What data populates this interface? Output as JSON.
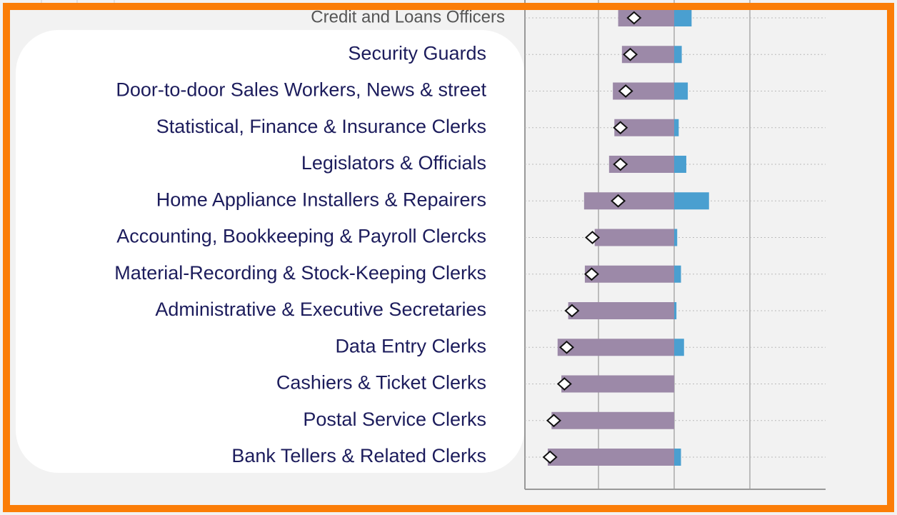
{
  "chart_data": {
    "type": "diverging-bar",
    "categories": [
      "Credit and Loans Officers",
      "Security Guards",
      "Door-to-door Sales Workers, News & street",
      "Statistical, Finance & Insurance Clerks",
      "Legislators & Officials",
      "Home Appliance Installers & Repairers",
      "Accounting, Bookkeeping & Payroll Clercks",
      "Material-Recording & Stock-Keeping Clerks",
      "Administrative & Executive Secretaries",
      "Data Entry Clerks",
      "Cashiers & Ticket Clerks",
      "Postal Service Clerks",
      "Bank Tellers & Related Clerks"
    ],
    "series": [
      {
        "color": "#9c89a8",
        "values": [
          -0.74,
          -0.69,
          -0.81,
          -0.79,
          -0.86,
          -1.19,
          -1.05,
          -1.18,
          -1.4,
          -1.54,
          -1.49,
          -1.62,
          -1.67
        ]
      },
      {
        "color": "#4a9fd0",
        "values": [
          0.23,
          0.1,
          0.18,
          0.06,
          0.16,
          0.46,
          0.04,
          0.09,
          0.03,
          0.13,
          0,
          0,
          0.09
        ]
      },
      {
        "color": "#ffffff",
        "marker": "diamond",
        "values": [
          -0.53,
          -0.58,
          -0.64,
          -0.71,
          -0.71,
          -0.74,
          -1.08,
          -1.09,
          -1.35,
          -1.42,
          -1.45,
          -1.59,
          -1.64
        ]
      }
    ],
    "xlim": [
      -2,
      2
    ],
    "xticks": [
      -1,
      0,
      1
    ],
    "grid": true
  }
}
